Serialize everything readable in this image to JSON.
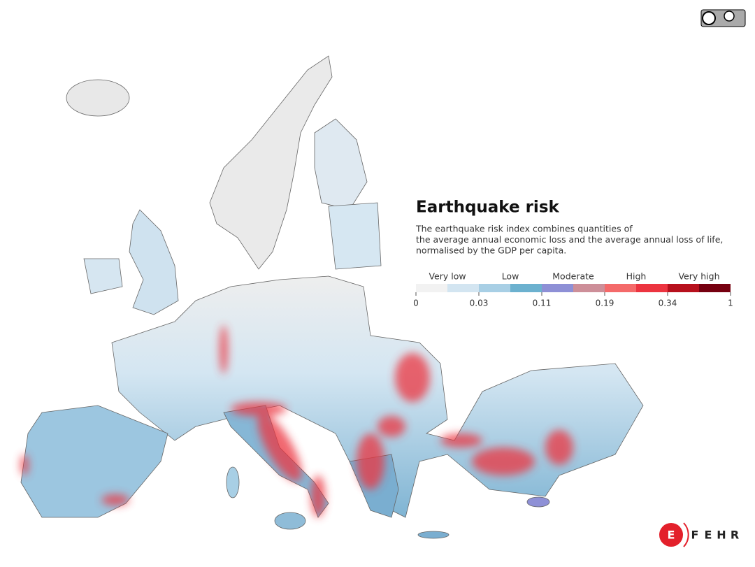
{
  "title": "Earthquake risk",
  "description": [
    "The earthquake risk index combines quantities of",
    "the average annual economic loss and the average annual loss of life,",
    "normalised by the GDP per capita."
  ],
  "legend": {
    "classes": [
      "Very low",
      "Low",
      "Moderate",
      "High",
      "Very high"
    ],
    "colors": [
      "#f2f2f2",
      "#d3e5f1",
      "#a8cfe5",
      "#6cb1cf",
      "#8e90d6",
      "#cd8f99",
      "#f46a6a",
      "#ec3440",
      "#b7101d",
      "#760010"
    ],
    "ticks": [
      0,
      0.03,
      0.11,
      0.19,
      0.34,
      1
    ]
  },
  "logo": {
    "letters": [
      "E",
      "F",
      "E",
      "H",
      "R"
    ]
  }
}
